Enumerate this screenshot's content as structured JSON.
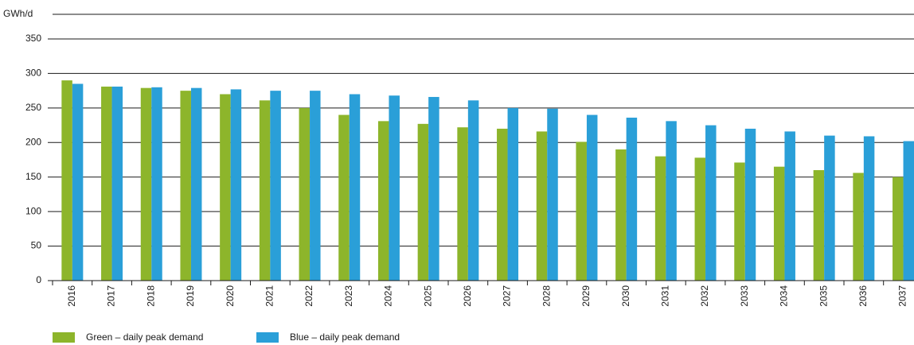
{
  "chart_data": {
    "type": "bar",
    "y_label": "GWh/d",
    "categories": [
      "2016",
      "2017",
      "2018",
      "2019",
      "2020",
      "2021",
      "2022",
      "2023",
      "2024",
      "2025",
      "2026",
      "2027",
      "2028",
      "2029",
      "2030",
      "2031",
      "2032",
      "2033",
      "2034",
      "2035",
      "2036",
      "2037"
    ],
    "series": [
      {
        "name": "Green – daily peak demand",
        "color": "#8db52b",
        "values": [
          290,
          281,
          279,
          275,
          270,
          261,
          250,
          240,
          231,
          227,
          222,
          220,
          216,
          201,
          190,
          180,
          178,
          171,
          165,
          160,
          156,
          150
        ]
      },
      {
        "name": "Blue – daily peak demand",
        "color": "#2a9fd8",
        "values": [
          285,
          281,
          280,
          279,
          277,
          275,
          275,
          270,
          268,
          266,
          261,
          250,
          249,
          240,
          236,
          231,
          225,
          220,
          216,
          210,
          209,
          202
        ]
      }
    ],
    "ylim": [
      0,
      350
    ],
    "yticks": [
      0,
      50,
      100,
      150,
      200,
      250,
      300,
      350
    ],
    "grid": true
  }
}
